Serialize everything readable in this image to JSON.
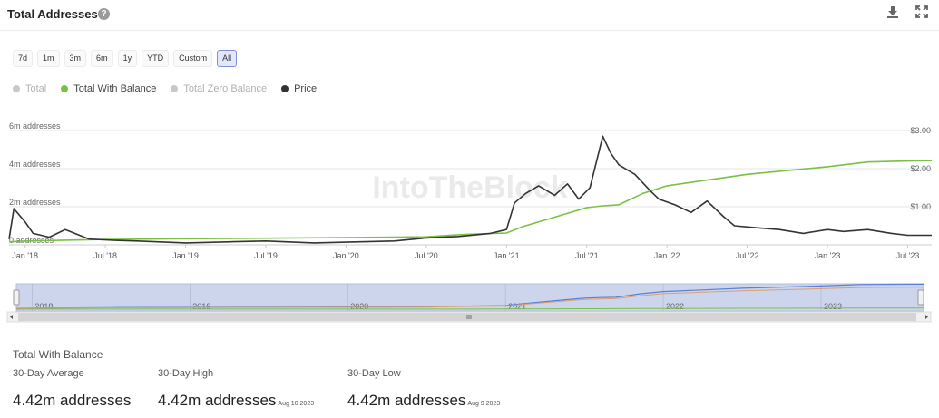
{
  "header": {
    "title": "Total Addresses",
    "help_icon": "help-circle-icon",
    "download_icon": "download-icon",
    "expand_icon": "fullscreen-icon"
  },
  "ranges": [
    "7d",
    "1m",
    "3m",
    "6m",
    "1y",
    "YTD",
    "Custom",
    "All"
  ],
  "active_range": "All",
  "legend": [
    {
      "label": "Total",
      "color": "#c8c8c8",
      "active": false
    },
    {
      "label": "Total With Balance",
      "color": "#7ac143",
      "active": true
    },
    {
      "label": "Total Zero Balance",
      "color": "#c8c8c8",
      "active": false
    },
    {
      "label": "Price",
      "color": "#333333",
      "active": true
    }
  ],
  "chart_data": {
    "type": "line",
    "watermark": "IntoTheBlock",
    "left_axis": {
      "ticks": [
        "0 addresses",
        "2m addresses",
        "4m addresses",
        "6m addresses"
      ],
      "values": [
        0,
        2,
        4,
        6
      ],
      "unit": "m addresses"
    },
    "right_axis": {
      "ticks": [
        "$1.00",
        "$2.00",
        "$3.00"
      ],
      "values": [
        1,
        2,
        3
      ]
    },
    "x_ticks": [
      "Jan '18",
      "Jul '18",
      "Jan '19",
      "Jul '19",
      "Jan '20",
      "Jul '20",
      "Jan '21",
      "Jul '21",
      "Jan '22",
      "Jul '22",
      "Jan '23",
      "Jul '23"
    ],
    "x_range": [
      2017.9,
      2023.65
    ],
    "ylim_left": [
      0,
      6
    ],
    "ylim_right": [
      0,
      3
    ],
    "series": [
      {
        "name": "Total With Balance",
        "axis": "left",
        "color": "#7ac143",
        "x": [
          2017.9,
          2018.0,
          2018.5,
          2019.0,
          2019.5,
          2020.0,
          2020.5,
          2020.75,
          2021.0,
          2021.1,
          2021.3,
          2021.5,
          2021.6,
          2021.7,
          2021.85,
          2022.0,
          2022.25,
          2022.5,
          2022.75,
          2023.0,
          2023.25,
          2023.5,
          2023.65
        ],
        "values": [
          0.15,
          0.2,
          0.28,
          0.32,
          0.35,
          0.38,
          0.42,
          0.55,
          0.62,
          0.95,
          1.45,
          1.95,
          2.05,
          2.1,
          2.7,
          3.1,
          3.4,
          3.7,
          3.9,
          4.1,
          4.35,
          4.4,
          4.42
        ]
      },
      {
        "name": "Price",
        "axis": "right",
        "color": "#333333",
        "x": [
          2017.9,
          2017.93,
          2018.0,
          2018.05,
          2018.15,
          2018.25,
          2018.4,
          2018.55,
          2018.7,
          2019.0,
          2019.3,
          2019.5,
          2019.8,
          2020.0,
          2020.3,
          2020.5,
          2020.7,
          2020.9,
          2021.0,
          2021.05,
          2021.12,
          2021.2,
          2021.3,
          2021.38,
          2021.45,
          2021.52,
          2021.6,
          2021.65,
          2021.7,
          2021.8,
          2021.9,
          2021.95,
          2022.05,
          2022.15,
          2022.25,
          2022.35,
          2022.42,
          2022.55,
          2022.7,
          2022.85,
          2023.0,
          2023.1,
          2023.25,
          2023.4,
          2023.5,
          2023.65
        ],
        "values": [
          0.15,
          0.95,
          0.6,
          0.3,
          0.2,
          0.4,
          0.15,
          0.12,
          0.1,
          0.05,
          0.08,
          0.1,
          0.05,
          0.07,
          0.1,
          0.18,
          0.22,
          0.3,
          0.4,
          1.1,
          1.35,
          1.55,
          1.3,
          1.6,
          1.2,
          1.5,
          2.85,
          2.4,
          2.1,
          1.85,
          1.4,
          1.2,
          1.05,
          0.85,
          1.15,
          0.75,
          0.5,
          0.45,
          0.4,
          0.3,
          0.4,
          0.35,
          0.4,
          0.3,
          0.25,
          0.25
        ]
      }
    ],
    "navigator": {
      "years": [
        "2018",
        "2019",
        "2020",
        "2021",
        "2022",
        "2023"
      ],
      "total_color": "#5b7fd6",
      "zero_color": "#d9a070",
      "balance_color": "#7ac143"
    }
  },
  "stats": {
    "title": "Total With Balance",
    "items": [
      {
        "label": "30-Day Average",
        "value": "4.42m addresses",
        "date": "",
        "color": "#4a6fc9"
      },
      {
        "label": "30-Day High",
        "value": "4.42m addresses",
        "date": "Aug 10 2023",
        "color": "#7ac143"
      },
      {
        "label": "30-Day Low",
        "value": "4.42m addresses",
        "date": "Aug 9 2023",
        "color": "#f0a040"
      }
    ]
  }
}
